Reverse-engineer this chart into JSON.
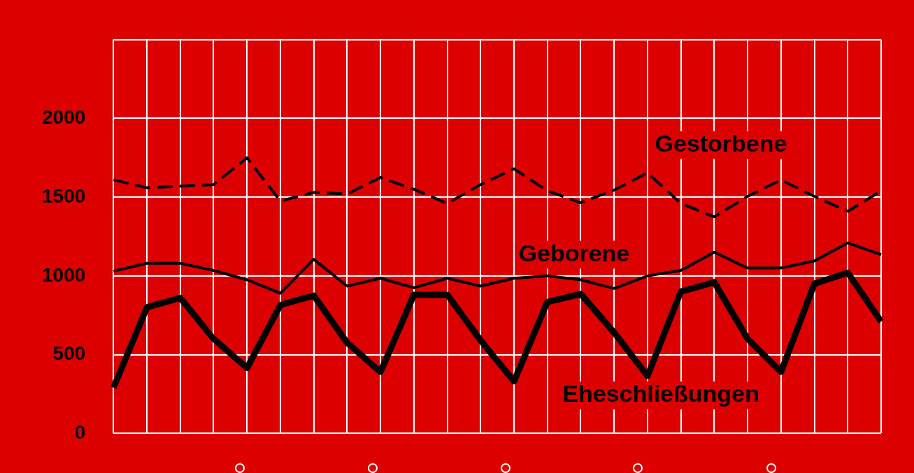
{
  "chart_data": {
    "type": "line",
    "categories": [
      null,
      null,
      null,
      null,
      null,
      null,
      null,
      null,
      null,
      null,
      null,
      null,
      null,
      null,
      null,
      null,
      null,
      null,
      null,
      null,
      null,
      null,
      null,
      null
    ],
    "series": [
      {
        "name": "Gestorbene",
        "color": "#000000",
        "line_style": "dashed",
        "values": [
          1610,
          1560,
          1570,
          1580,
          1750,
          1475,
          1530,
          1520,
          1625,
          1550,
          1460,
          1580,
          1680,
          1540,
          1465,
          1545,
          1655,
          1460,
          1375,
          1505,
          1610,
          1505,
          1410,
          1540
        ]
      },
      {
        "name": "Geborene",
        "color": "#000000",
        "line_style": "solid",
        "values": [
          1030,
          1080,
          1080,
          1035,
          975,
          890,
          1105,
          935,
          985,
          925,
          985,
          935,
          985,
          1000,
          975,
          920,
          1000,
          1035,
          1150,
          1050,
          1050,
          1095,
          1210,
          1135
        ]
      },
      {
        "name": "Eheschließungen",
        "color": "#000000",
        "line_style": "solid",
        "values": [
          290,
          800,
          860,
          600,
          415,
          815,
          875,
          575,
          390,
          880,
          880,
          590,
          330,
          835,
          885,
          640,
          365,
          900,
          960,
          600,
          390,
          950,
          1020,
          710
        ]
      }
    ],
    "ylim": [
      0,
      2500
    ],
    "yticks": [
      0,
      500,
      1000,
      1500,
      2000,
      {
        "value": 2500,
        "label": null
      }
    ],
    "grid": true,
    "legend": false,
    "marker": "none",
    "tick_labels": "y"
  }
}
